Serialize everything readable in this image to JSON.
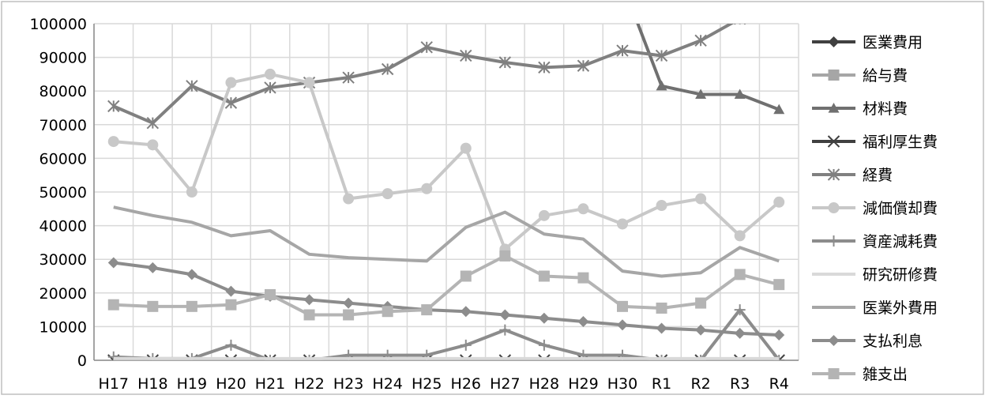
{
  "chart_data": {
    "type": "line",
    "title": "",
    "xlabel": "",
    "ylabel": "",
    "ylim": [
      0,
      100000
    ],
    "yticks": [
      0,
      10000,
      20000,
      30000,
      40000,
      50000,
      60000,
      70000,
      80000,
      90000,
      100000
    ],
    "grid": true,
    "legend_position": "right",
    "categories": [
      "H17",
      "H18",
      "H19",
      "H20",
      "H21",
      "H22",
      "H23",
      "H24",
      "H25",
      "H26",
      "H27",
      "H28",
      "H29",
      "H30",
      "R1",
      "R2",
      "R3",
      "R4"
    ],
    "series": [
      {
        "name": "医業費用",
        "color": "#404040",
        "marker": "diamond",
        "values": [
          null,
          null,
          null,
          null,
          null,
          null,
          null,
          null,
          null,
          null,
          null,
          null,
          null,
          null,
          null,
          null,
          null,
          null
        ]
      },
      {
        "name": "給与費",
        "color": "#a6a6a6",
        "marker": "square",
        "values": [
          null,
          null,
          null,
          null,
          null,
          null,
          null,
          null,
          null,
          null,
          null,
          null,
          null,
          null,
          null,
          null,
          null,
          null
        ]
      },
      {
        "name": "材料費",
        "color": "#707070",
        "marker": "triangle",
        "values": [
          null,
          null,
          null,
          null,
          null,
          null,
          null,
          null,
          null,
          null,
          null,
          null,
          null,
          112000,
          81500,
          79000,
          79000,
          74500
        ]
      },
      {
        "name": "福利厚生費",
        "color": "#404040",
        "marker": "x",
        "values": [
          0,
          0,
          0,
          0,
          0,
          0,
          0,
          0,
          0,
          0,
          0,
          0,
          0,
          0,
          0,
          0,
          0,
          0
        ]
      },
      {
        "name": "経費",
        "color": "#808080",
        "marker": "star",
        "values": [
          75500,
          70500,
          81500,
          76500,
          81000,
          82500,
          84000,
          86500,
          93000,
          90500,
          88500,
          87000,
          87500,
          92000,
          90500,
          95000,
          101500,
          114000
        ]
      },
      {
        "name": "減価償却費",
        "color": "#c8c8c8",
        "marker": "circle",
        "values": [
          65000,
          64000,
          50000,
          82500,
          85000,
          82500,
          48000,
          49500,
          51000,
          63000,
          33000,
          43000,
          45000,
          40500,
          46000,
          48000,
          37000,
          47000
        ]
      },
      {
        "name": "資産減耗費",
        "color": "#8c8c8c",
        "marker": "plus",
        "values": [
          1000,
          500,
          500,
          4500,
          0,
          0,
          1500,
          1500,
          1500,
          4500,
          9000,
          4500,
          1500,
          1500,
          0,
          0,
          15000,
          0
        ]
      },
      {
        "name": "研究研修費",
        "color": "#d9d9d9",
        "marker": "none",
        "values": [
          500,
          500,
          500,
          500,
          500,
          500,
          500,
          500,
          500,
          500,
          500,
          500,
          500,
          500,
          500,
          500,
          500,
          500
        ]
      },
      {
        "name": "医業外費用",
        "color": "#a6a6a6",
        "marker": "none",
        "values": [
          45500,
          43000,
          41000,
          37000,
          38500,
          31500,
          30500,
          30000,
          29500,
          39500,
          44000,
          37500,
          36000,
          26500,
          25000,
          26000,
          33500,
          29500
        ]
      },
      {
        "name": "支払利息",
        "color": "#8c8c8c",
        "marker": "diamond",
        "values": [
          29000,
          27500,
          25500,
          20500,
          19000,
          18000,
          17000,
          16000,
          15000,
          14500,
          13500,
          12500,
          11500,
          10500,
          9500,
          9000,
          8000,
          7500
        ]
      },
      {
        "name": "雑支出",
        "color": "#b4b4b4",
        "marker": "square",
        "values": [
          16500,
          16000,
          16000,
          16500,
          19500,
          13500,
          13500,
          14500,
          15000,
          25000,
          31000,
          25000,
          24500,
          16000,
          15500,
          17000,
          25500,
          22500
        ]
      }
    ]
  }
}
